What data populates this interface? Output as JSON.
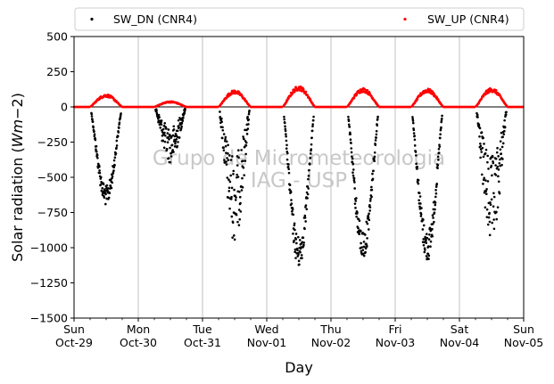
{
  "chart_data": {
    "type": "scatter",
    "title": "",
    "xlabel": "Day",
    "ylabel": "Solar radiation (W m−2)",
    "ylabel_parts": {
      "main": "Solar radiation (",
      "italic": "Wm",
      "rest": "−2)"
    },
    "ylim": [
      -1500,
      500
    ],
    "yticks": [
      500,
      250,
      0,
      -250,
      -500,
      -750,
      -1000,
      -1250,
      -1500
    ],
    "ytick_labels": [
      "500",
      "250",
      "0",
      "−250",
      "−500",
      "−750",
      "−1000",
      "−1250",
      "−1500"
    ],
    "xlim": [
      "2023-10-29",
      "2023-11-05"
    ],
    "xticks": [
      {
        "day": 0,
        "weekday": "Sun",
        "date": "Oct-29"
      },
      {
        "day": 1,
        "weekday": "Mon",
        "date": "Oct-30"
      },
      {
        "day": 2,
        "weekday": "Tue",
        "date": "Oct-31"
      },
      {
        "day": 3,
        "weekday": "Wed",
        "date": "Nov-01"
      },
      {
        "day": 4,
        "weekday": "Thu",
        "date": "Nov-02"
      },
      {
        "day": 5,
        "weekday": "Fri",
        "date": "Nov-03"
      },
      {
        "day": 6,
        "weekday": "Sat",
        "date": "Nov-04"
      },
      {
        "day": 7,
        "weekday": "Sun",
        "date": "Nov-05"
      }
    ],
    "grid": "vertical",
    "legend_placement": "top",
    "watermark": [
      "Grupo de Micrometeorologia",
      "IAG - USP"
    ],
    "series": [
      {
        "name": "SW_DN (CNR4)",
        "color": "#000000",
        "note_units": "daily minimum of downward shortwave (W m-2) by date",
        "daily_min": [
          {
            "date": "2023-10-29",
            "min": -700
          },
          {
            "date": "2023-10-30",
            "min": -400
          },
          {
            "date": "2023-10-31",
            "min": -960
          },
          {
            "date": "2023-11-01",
            "min": -1150
          },
          {
            "date": "2023-11-02",
            "min": -1090
          },
          {
            "date": "2023-11-03",
            "min": -1100
          },
          {
            "date": "2023-11-04",
            "min": -1000
          }
        ]
      },
      {
        "name": "SW_UP (CNR4)",
        "color": "#ff0000",
        "daily_max": [
          {
            "date": "2023-10-29",
            "max": 90
          },
          {
            "date": "2023-10-30",
            "max": 40
          },
          {
            "date": "2023-10-31",
            "max": 120
          },
          {
            "date": "2023-11-01",
            "max": 150
          },
          {
            "date": "2023-11-02",
            "max": 135
          },
          {
            "date": "2023-11-03",
            "max": 130
          },
          {
            "date": "2023-11-04",
            "max": 135
          }
        ]
      }
    ]
  }
}
